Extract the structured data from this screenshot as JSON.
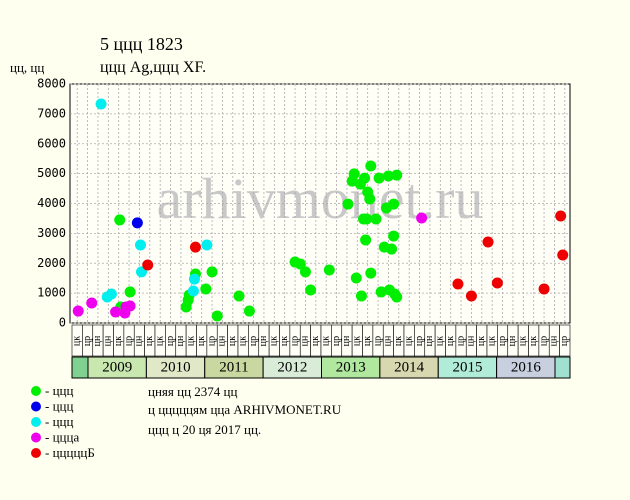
{
  "chart_data": {
    "type": "scatter",
    "title": "5 ццц 1823",
    "subtitle": "ццц Ag,ццц XF.",
    "y_label": "цц, цц",
    "watermark": "arhivmonet.ru",
    "ylim": [
      0,
      8000
    ],
    "yticks": [
      0,
      1000,
      2000,
      3000,
      4000,
      5000,
      6000,
      7000,
      8000
    ],
    "xlim": [
      0,
      48
    ],
    "grid": true,
    "x_labels": [
      "цк",
      "цр",
      "цн",
      "цн",
      "цк",
      "цр",
      "цн",
      "цк",
      "цк",
      "цр",
      "цн",
      "цк",
      "цк",
      "цр",
      "цн",
      "цк",
      "цк",
      "цр",
      "цн",
      "цк",
      "цк",
      "цр",
      "цн",
      "цк",
      "цк",
      "цр",
      "цн",
      "цк",
      "цк",
      "цр",
      "цн",
      "цк",
      "цк",
      "цр",
      "цн",
      "цк",
      "цк",
      "цр",
      "цн",
      "цк",
      "цк",
      "цр",
      "цн",
      "цк",
      "цк",
      "цр",
      "цн",
      "цр"
    ],
    "years": [
      {
        "label": "2009",
        "color": "#c8e8b0"
      },
      {
        "label": "2010",
        "color": "#e0e8c8"
      },
      {
        "label": "2011",
        "color": "#c8d8a0"
      },
      {
        "label": "2012",
        "color": "#d8ecd8"
      },
      {
        "label": "2013",
        "color": "#b0e8a0"
      },
      {
        "label": "2014",
        "color": "#d8d8b0"
      },
      {
        "label": "2015",
        "color": "#b0ecd8"
      },
      {
        "label": "2016",
        "color": "#c8d0e0"
      }
    ],
    "notes": [
      "цняя цц 2374 цц",
      "ц цццццям цца ARHIVMONET.RU",
      "ццц ц 20 ця 2017 цц."
    ],
    "series": [
      {
        "name": "- ццц",
        "color": "#00ee00",
        "x": [
          4.6,
          4.7,
          5.6,
          11.0,
          11.2,
          11.3,
          11.9,
          12.9,
          13.5,
          14.0,
          16.1,
          17.1,
          21.5,
          22.0,
          22.5,
          23.0,
          24.8,
          26.6,
          27.0,
          27.2,
          27.4,
          27.8,
          27.9,
          28.1,
          28.2,
          28.3,
          28.4,
          28.5,
          28.7,
          28.8,
          28.8,
          29.3,
          29.6,
          29.8,
          30.3,
          30.5,
          30.1,
          30.6,
          30.8,
          31.0,
          31.0,
          31.1,
          31.3,
          31.3
        ],
        "values": [
          3450,
          535,
          1040,
          535,
          770,
          935,
          1640,
          1140,
          1710,
          235,
          905,
          400,
          2040,
          1975,
          1710,
          1105,
          1775,
          3980,
          4750,
          4990,
          1505,
          4650,
          905,
          3480,
          4850,
          2780,
          3480,
          4385,
          4150,
          5255,
          1670,
          3480,
          4850,
          1040,
          3850,
          4920,
          2540,
          1105,
          2475,
          2910,
          3980,
          970,
          4950,
          870
        ]
      },
      {
        "name": "- ццц",
        "color": "#0000ee",
        "x": [
          6.3
        ],
        "values": [
          3350
        ]
      },
      {
        "name": "- ццц",
        "color": "#00eeee",
        "x": [
          2.8,
          3.4,
          3.8,
          6.6,
          6.7,
          11.7,
          11.8,
          13.0
        ],
        "values": [
          7330,
          870,
          970,
          2610,
          1710,
          1070,
          1470,
          2610
        ]
      },
      {
        "name": "- ццца",
        "color": "#ee00ee",
        "x": [
          0.6,
          1.9,
          4.2,
          5.1,
          5.2,
          5.6,
          33.7
        ],
        "values": [
          400,
          670,
          370,
          335,
          535,
          570,
          3515
        ]
      },
      {
        "name": "- цццццБ",
        "color": "#ee0000",
        "x": [
          7.3,
          11.9,
          37.2,
          38.5,
          40.1,
          41.0,
          45.5,
          47.1,
          47.3
        ],
        "values": [
          1940,
          2540,
          1305,
          905,
          2710,
          1340,
          1140,
          3580,
          2275
        ]
      }
    ]
  }
}
